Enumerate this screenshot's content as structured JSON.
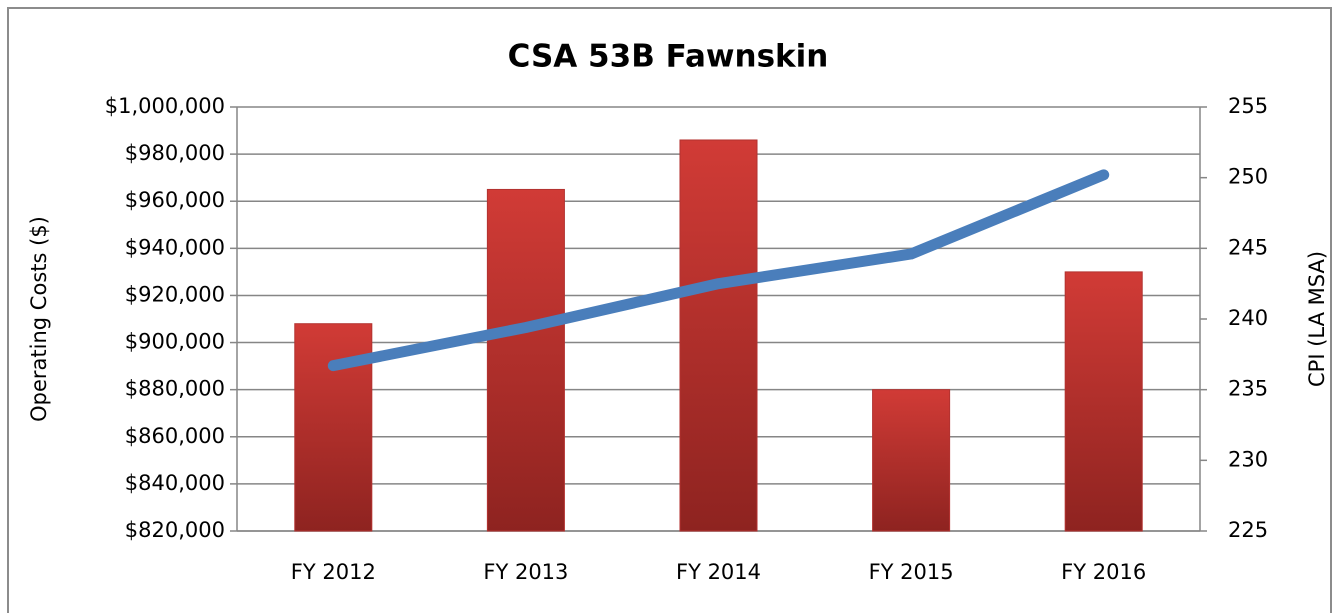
{
  "chart_data": {
    "type": "bar_line",
    "title": "CSA 53B Fawnskin",
    "y_label": "Operating Costs ($)",
    "y2_label": "CPI (LA MSA)",
    "categories": [
      "FY 2012",
      "FY 2013",
      "FY 2014",
      "FY 2015",
      "FY 2016"
    ],
    "series": [
      {
        "type": "bar",
        "color": "#d13b36",
        "values": [
          908000,
          965000,
          986000,
          880000,
          930000
        ]
      },
      {
        "type": "line",
        "color": "#4a7ebb",
        "axis": "y2",
        "values": [
          236.7,
          239.4,
          242.5,
          244.6,
          250.2
        ]
      }
    ],
    "ylim": [
      820000,
      1000000
    ],
    "yticks": [
      {
        "value": 820000,
        "label": "$820,000"
      },
      {
        "value": 840000,
        "label": "$840,000"
      },
      {
        "value": 860000,
        "label": "$860,000"
      },
      {
        "value": 880000,
        "label": "$880,000"
      },
      {
        "value": 900000,
        "label": "$900,000"
      },
      {
        "value": 920000,
        "label": "$920,000"
      },
      {
        "value": 940000,
        "label": "$940,000"
      },
      {
        "value": 960000,
        "label": "$960,000"
      },
      {
        "value": 980000,
        "label": "$980,000"
      },
      {
        "value": 1000000,
        "label": "$1,000,000"
      }
    ],
    "y2lim": [
      225,
      255
    ],
    "y2ticks": [
      225,
      230,
      235,
      240,
      245,
      250,
      255
    ],
    "grid": true
  }
}
